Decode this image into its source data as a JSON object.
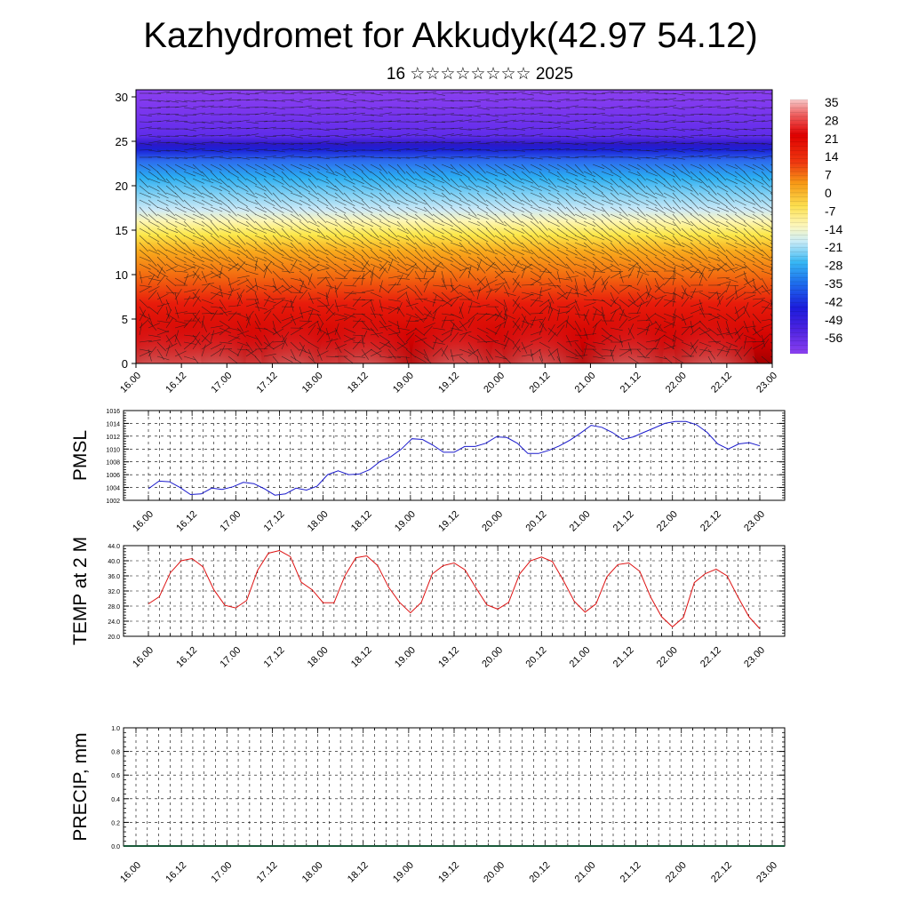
{
  "title": "Kazhydromet for Akkudyk(42.97 54.12)",
  "subtitle": "16 ☆☆☆☆☆☆☆☆ 2025",
  "time_ticks": [
    "16.00",
    "16.12",
    "17.00",
    "17.12",
    "18.00",
    "18.12",
    "19.00",
    "19.12",
    "20.00",
    "20.12",
    "21.00",
    "21.12",
    "22.00",
    "22.12",
    "23.00"
  ],
  "chart_data": [
    {
      "type": "heatmap",
      "title": "",
      "xlabel": "",
      "ylabel": "",
      "x_ticks": [
        "16.00",
        "16.12",
        "17.00",
        "17.12",
        "18.00",
        "18.12",
        "19.00",
        "19.12",
        "20.00",
        "20.12",
        "21.00",
        "21.12",
        "22.00",
        "22.12",
        "23.00"
      ],
      "y_ticks": [
        0,
        5,
        10,
        15,
        20,
        25,
        30
      ],
      "ylim": [
        0,
        30.8
      ],
      "colorbar_labels": [
        "35",
        "28",
        "21",
        "14",
        "7",
        "0",
        "-7",
        "-14",
        "-21",
        "-28",
        "-35",
        "-42",
        "-49",
        "-56"
      ],
      "colorbar_range": [
        -63,
        42
      ],
      "notes": "Temperature cross-section with wind barbs; warm near surface, cold aloft"
    },
    {
      "type": "line",
      "ylabel": "PMSL",
      "ylim": [
        1002,
        1016
      ],
      "y_ticks": [
        "1002",
        "1004",
        "1006",
        "1008",
        "1010",
        "1012",
        "1014",
        "1016"
      ],
      "x_ticks": [
        "16.00",
        "16.12",
        "17.00",
        "17.12",
        "18.00",
        "18.12",
        "19.00",
        "19.12",
        "20.00",
        "20.12",
        "21.00",
        "21.12",
        "22.00",
        "22.12",
        "23.00"
      ],
      "color": "#1a1acc",
      "series": [
        {
          "values": [
            1003.8,
            1005.0,
            1004.9,
            1004.0,
            1002.9,
            1003.0,
            1003.9,
            1003.7,
            1004.1,
            1004.8,
            1004.6,
            1003.8,
            1002.8,
            1003.0,
            1003.9,
            1003.6,
            1004.2,
            1006.0,
            1006.6,
            1006.0,
            1006.1,
            1006.8,
            1008.1,
            1008.8,
            1010.0,
            1011.6,
            1011.5,
            1010.6,
            1009.5,
            1009.5,
            1010.4,
            1010.4,
            1010.9,
            1011.9,
            1011.8,
            1010.9,
            1009.3,
            1009.3,
            1009.8,
            1010.5,
            1011.4,
            1012.5,
            1013.7,
            1013.4,
            1012.6,
            1011.5,
            1011.9,
            1012.6,
            1013.3,
            1014.0,
            1014.3,
            1014.3,
            1013.8,
            1012.6,
            1010.8,
            1010.0,
            1010.8,
            1011.0,
            1010.5
          ]
        }
      ]
    },
    {
      "type": "line",
      "ylabel": "TEMP at 2 M",
      "ylim": [
        20,
        44
      ],
      "y_ticks": [
        "20.0",
        "24.0",
        "28.0",
        "32.0",
        "36.0",
        "40.0",
        "44.0"
      ],
      "x_ticks": [
        "16.00",
        "16.12",
        "17.00",
        "17.12",
        "18.00",
        "18.12",
        "19.00",
        "19.12",
        "20.00",
        "20.12",
        "21.00",
        "21.12",
        "22.00",
        "22.12",
        "23.00"
      ],
      "color": "#dd1111",
      "series": [
        {
          "values": [
            28.6,
            30.5,
            36.8,
            40.0,
            40.6,
            38.4,
            32.3,
            28.2,
            27.5,
            29.5,
            37.5,
            42.0,
            42.7,
            41.1,
            34.3,
            32.3,
            28.9,
            28.9,
            36.0,
            40.8,
            41.3,
            38.7,
            33.0,
            29.0,
            26.2,
            29.0,
            36.5,
            38.7,
            39.4,
            37.6,
            32.8,
            28.3,
            27.2,
            29.0,
            36.5,
            40.0,
            41.0,
            39.8,
            34.8,
            29.3,
            26.4,
            28.6,
            35.8,
            39.0,
            39.4,
            37.2,
            30.4,
            25.2,
            22.5,
            25.0,
            34.2,
            36.6,
            37.8,
            36.0,
            30.4,
            25.2,
            22.0
          ]
        }
      ]
    },
    {
      "type": "line",
      "ylabel": "PRECIP, mm",
      "ylim": [
        0,
        1
      ],
      "y_ticks": [
        "0.0",
        "0.2",
        "0.4",
        "0.6",
        "0.8",
        "1.0"
      ],
      "x_ticks": [
        "16.00",
        "16.12",
        "17.00",
        "17.12",
        "18.00",
        "18.12",
        "19.00",
        "19.12",
        "20.00",
        "20.12",
        "21.00",
        "21.12",
        "22.00",
        "22.12",
        "23.00"
      ],
      "series": [
        {
          "values": []
        }
      ]
    }
  ]
}
